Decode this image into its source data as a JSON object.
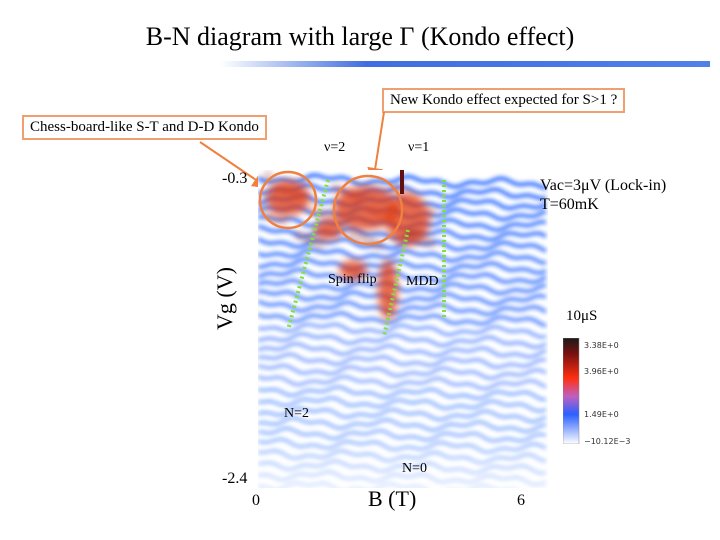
{
  "title": "B-N diagram with large Γ (Kondo effect)",
  "callouts": {
    "new_kondo": "New Kondo effect expected for S>1 ?",
    "chessboard": "Chess-board-like S-T and D-D Kondo"
  },
  "labels": {
    "nu2": "ν=2",
    "nu1": "ν=1",
    "spin_flip": "Spin flip",
    "mdd": "MDD",
    "n2": "N=2",
    "n0": "N=0"
  },
  "axes": {
    "ylabel": "Vg (V)",
    "y_top": "-0.3",
    "y_bottom": "-2.4",
    "x_min": "0",
    "x_max": "6",
    "xlabel": "B (T)"
  },
  "conditions": {
    "line1": "Vac=3μV (Lock-in)",
    "line2": "T=60mK"
  },
  "conductance_label": "10μS",
  "colorbar": {
    "ticks": [
      "3.38E+0",
      "3.96E+0",
      "1.49E+0",
      "−10.12E−3"
    ]
  },
  "colors": {
    "accent": "#3f6ee0",
    "callout_border": "#f0a070",
    "circle": "#f08040",
    "guide": "#80e040",
    "peak": "#1a5cff",
    "hot": "#e03a10"
  }
}
